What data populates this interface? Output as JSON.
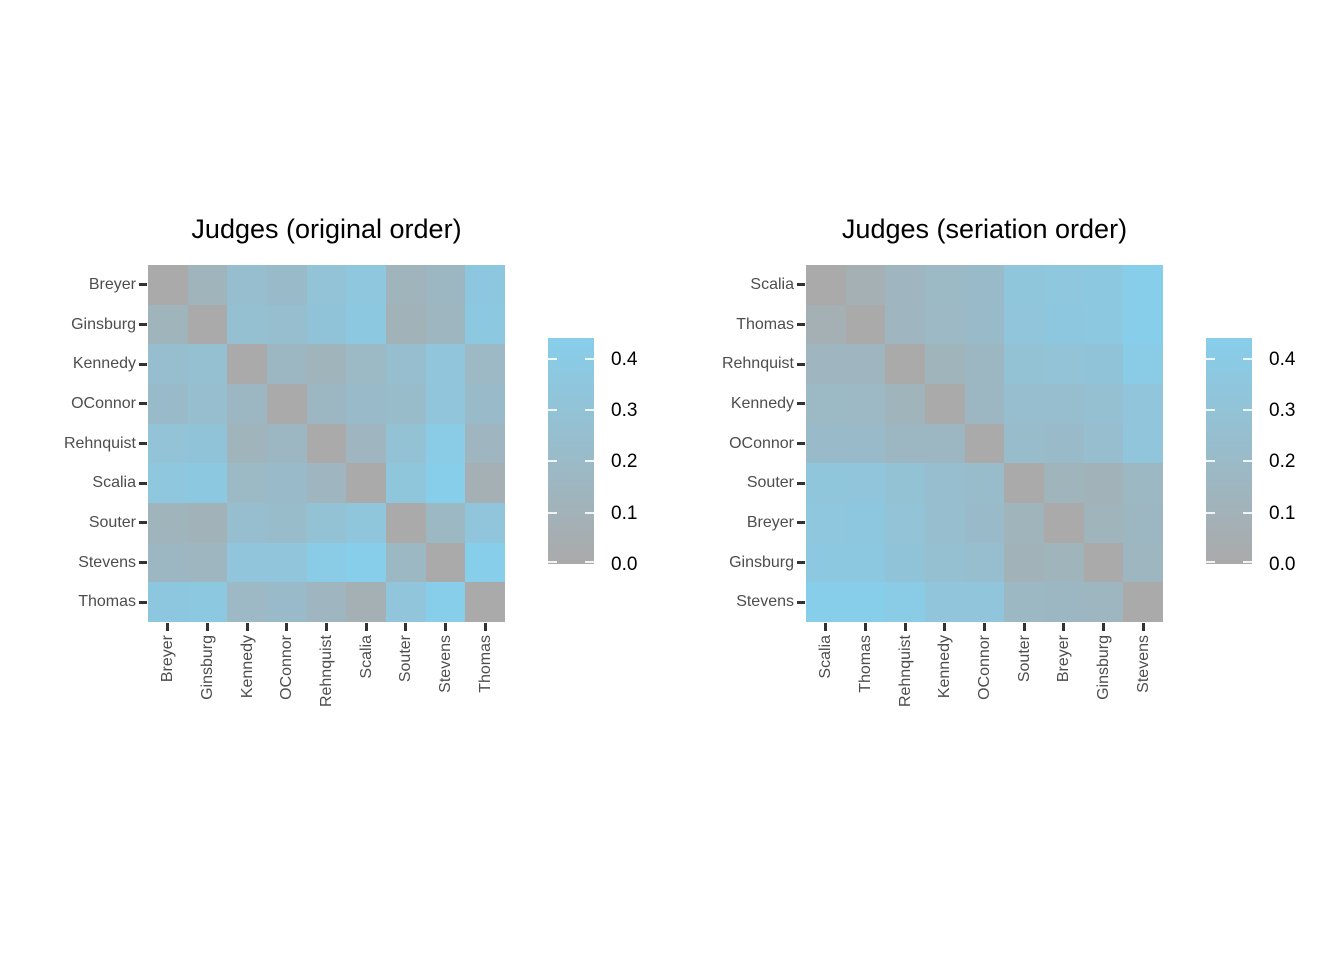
{
  "page": {
    "background": "#ffffff"
  },
  "style": {
    "title_color": "#000000",
    "axis_text_color": "#4d4d4d",
    "axis_tick_color": "#333333",
    "legend_label_color": "#000000"
  },
  "chart_data": [
    {
      "type": "heatmap",
      "title": "Judges (original order)",
      "labels": [
        "Breyer",
        "Ginsburg",
        "Kennedy",
        "OConnor",
        "Rehnquist",
        "Scalia",
        "Souter",
        "Stevens",
        "Thomas"
      ],
      "matrix": [
        [
          0.0,
          0.12,
          0.25,
          0.21,
          0.3,
          0.35,
          0.12,
          0.16,
          0.36
        ],
        [
          0.12,
          0.0,
          0.27,
          0.25,
          0.31,
          0.37,
          0.1,
          0.15,
          0.37
        ],
        [
          0.25,
          0.27,
          0.0,
          0.16,
          0.12,
          0.19,
          0.25,
          0.33,
          0.18
        ],
        [
          0.21,
          0.25,
          0.16,
          0.0,
          0.16,
          0.21,
          0.22,
          0.33,
          0.21
        ],
        [
          0.3,
          0.31,
          0.12,
          0.16,
          0.0,
          0.14,
          0.29,
          0.4,
          0.14
        ],
        [
          0.35,
          0.37,
          0.19,
          0.21,
          0.14,
          0.0,
          0.34,
          0.44,
          0.07
        ],
        [
          0.12,
          0.1,
          0.25,
          0.22,
          0.29,
          0.34,
          0.0,
          0.17,
          0.33
        ],
        [
          0.16,
          0.15,
          0.33,
          0.33,
          0.4,
          0.44,
          0.17,
          0.0,
          0.44
        ],
        [
          0.36,
          0.37,
          0.18,
          0.21,
          0.14,
          0.07,
          0.33,
          0.44,
          0.0
        ]
      ],
      "legend": {
        "min": 0,
        "max": 0.44,
        "color_low": "#aaaaaa",
        "color_high": "#87ceeb",
        "ticks": [
          {
            "value": 0.0,
            "label": "0.0"
          },
          {
            "value": 0.1,
            "label": "0.1"
          },
          {
            "value": 0.2,
            "label": "0.2"
          },
          {
            "value": 0.3,
            "label": "0.3"
          },
          {
            "value": 0.4,
            "label": "0.4"
          }
        ]
      }
    },
    {
      "type": "heatmap",
      "title": "Judges (seriation order)",
      "labels": [
        "Scalia",
        "Thomas",
        "Rehnquist",
        "Kennedy",
        "OConnor",
        "Souter",
        "Breyer",
        "Ginsburg",
        "Stevens"
      ],
      "matrix": [
        [
          0.0,
          0.07,
          0.14,
          0.19,
          0.21,
          0.34,
          0.35,
          0.37,
          0.44
        ],
        [
          0.07,
          0.0,
          0.14,
          0.18,
          0.21,
          0.33,
          0.36,
          0.37,
          0.44
        ],
        [
          0.14,
          0.14,
          0.0,
          0.12,
          0.16,
          0.29,
          0.3,
          0.31,
          0.4
        ],
        [
          0.19,
          0.18,
          0.12,
          0.0,
          0.16,
          0.25,
          0.25,
          0.27,
          0.33
        ],
        [
          0.21,
          0.21,
          0.16,
          0.16,
          0.0,
          0.22,
          0.21,
          0.25,
          0.33
        ],
        [
          0.34,
          0.33,
          0.29,
          0.25,
          0.22,
          0.0,
          0.12,
          0.1,
          0.17
        ],
        [
          0.35,
          0.36,
          0.3,
          0.25,
          0.21,
          0.12,
          0.0,
          0.12,
          0.16
        ],
        [
          0.37,
          0.37,
          0.31,
          0.27,
          0.25,
          0.1,
          0.12,
          0.0,
          0.15
        ],
        [
          0.44,
          0.44,
          0.4,
          0.33,
          0.33,
          0.17,
          0.16,
          0.15,
          0.0
        ]
      ],
      "legend": {
        "min": 0,
        "max": 0.44,
        "color_low": "#aaaaaa",
        "color_high": "#87ceeb",
        "ticks": [
          {
            "value": 0.0,
            "label": "0.0"
          },
          {
            "value": 0.1,
            "label": "0.1"
          },
          {
            "value": 0.2,
            "label": "0.2"
          },
          {
            "value": 0.3,
            "label": "0.3"
          },
          {
            "value": 0.4,
            "label": "0.4"
          }
        ]
      }
    }
  ]
}
